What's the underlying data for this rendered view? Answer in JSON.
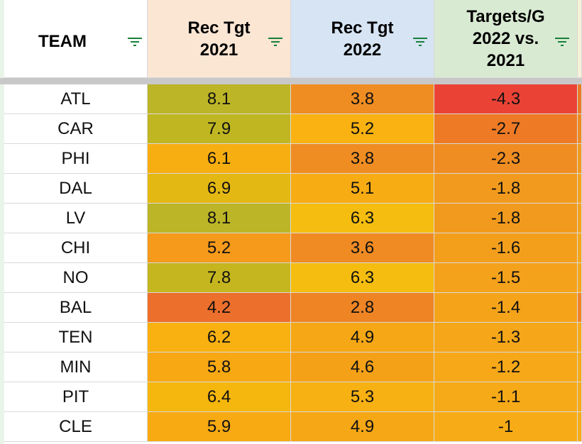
{
  "headers": [
    {
      "label": "TEAM",
      "bg": "#ffffff"
    },
    {
      "label": "Rec Tgt\n2021",
      "bg": "#fbe5d3"
    },
    {
      "label": "Rec Tgt\n2022",
      "bg": "#d6e4f3"
    },
    {
      "label": "Targets/G\n2022 vs.\n2021",
      "bg": "#d9ead3"
    }
  ],
  "rows": [
    {
      "team": "ATL",
      "tgt2021": "8.1",
      "tgt2022": "3.8",
      "diff": "-4.3",
      "c2021": "#bcb527",
      "c2022": "#f08d22",
      "cdiff": "#ea4336"
    },
    {
      "team": "CAR",
      "tgt2021": "7.9",
      "tgt2022": "5.2",
      "diff": "-2.7",
      "c2021": "#c0b622",
      "c2022": "#f9b211",
      "cdiff": "#ee7a25"
    },
    {
      "team": "PHI",
      "tgt2021": "6.1",
      "tgt2022": "3.8",
      "diff": "-2.3",
      "c2021": "#f7ae10",
      "c2022": "#f08d22",
      "cdiff": "#f08d22"
    },
    {
      "team": "DAL",
      "tgt2021": "6.9",
      "tgt2022": "5.1",
      "diff": "-1.8",
      "c2021": "#e4b813",
      "c2022": "#f8ac14",
      "cdiff": "#f29a1d"
    },
    {
      "team": "LV",
      "tgt2021": "8.1",
      "tgt2022": "6.3",
      "diff": "-1.8",
      "c2021": "#bcb527",
      "c2022": "#f5bd0f",
      "cdiff": "#f29a1d"
    },
    {
      "team": "CHI",
      "tgt2021": "5.2",
      "tgt2022": "3.6",
      "diff": "-1.6",
      "c2021": "#f59a1a",
      "c2022": "#f08b24",
      "cdiff": "#f49f1c"
    },
    {
      "team": "NO",
      "tgt2021": "7.8",
      "tgt2022": "6.3",
      "diff": "-1.5",
      "c2021": "#c5b61f",
      "c2022": "#f5bd0f",
      "cdiff": "#f4a21b"
    },
    {
      "team": "BAL",
      "tgt2021": "4.2",
      "tgt2022": "2.8",
      "diff": "-1.4",
      "c2021": "#ed6f2c",
      "c2022": "#ef8424",
      "cdiff": "#f5a41a"
    },
    {
      "team": "TEN",
      "tgt2021": "6.2",
      "tgt2022": "4.9",
      "diff": "-1.3",
      "c2021": "#f8b111",
      "c2022": "#f6a716",
      "cdiff": "#f6a619"
    },
    {
      "team": "MIN",
      "tgt2021": "5.8",
      "tgt2022": "4.6",
      "diff": "-1.2",
      "c2021": "#f7a813",
      "c2022": "#f5a118",
      "cdiff": "#f6a819"
    },
    {
      "team": "PIT",
      "tgt2021": "6.4",
      "tgt2022": "5.3",
      "diff": "-1.1",
      "c2021": "#f5b60e",
      "c2022": "#f8b113",
      "cdiff": "#f7aa18"
    },
    {
      "team": "CLE",
      "tgt2021": "5.9",
      "tgt2022": "4.9",
      "diff": "-1",
      "c2021": "#f7aa12",
      "c2022": "#f6a716",
      "cdiff": "#f7ac17"
    }
  ],
  "edge_colors": [
    "#ea7a26",
    "#ee8a22",
    "#f29a1d",
    "#f5a21a",
    "#f5a21a",
    "#f6a619",
    "#f6a619",
    "#f08424",
    "#f7aa18",
    "#f7aa18",
    "#f7aa18",
    "#f7ac17"
  ],
  "icons": {
    "filter": "filter-icon",
    "filter_color": "#188038"
  }
}
